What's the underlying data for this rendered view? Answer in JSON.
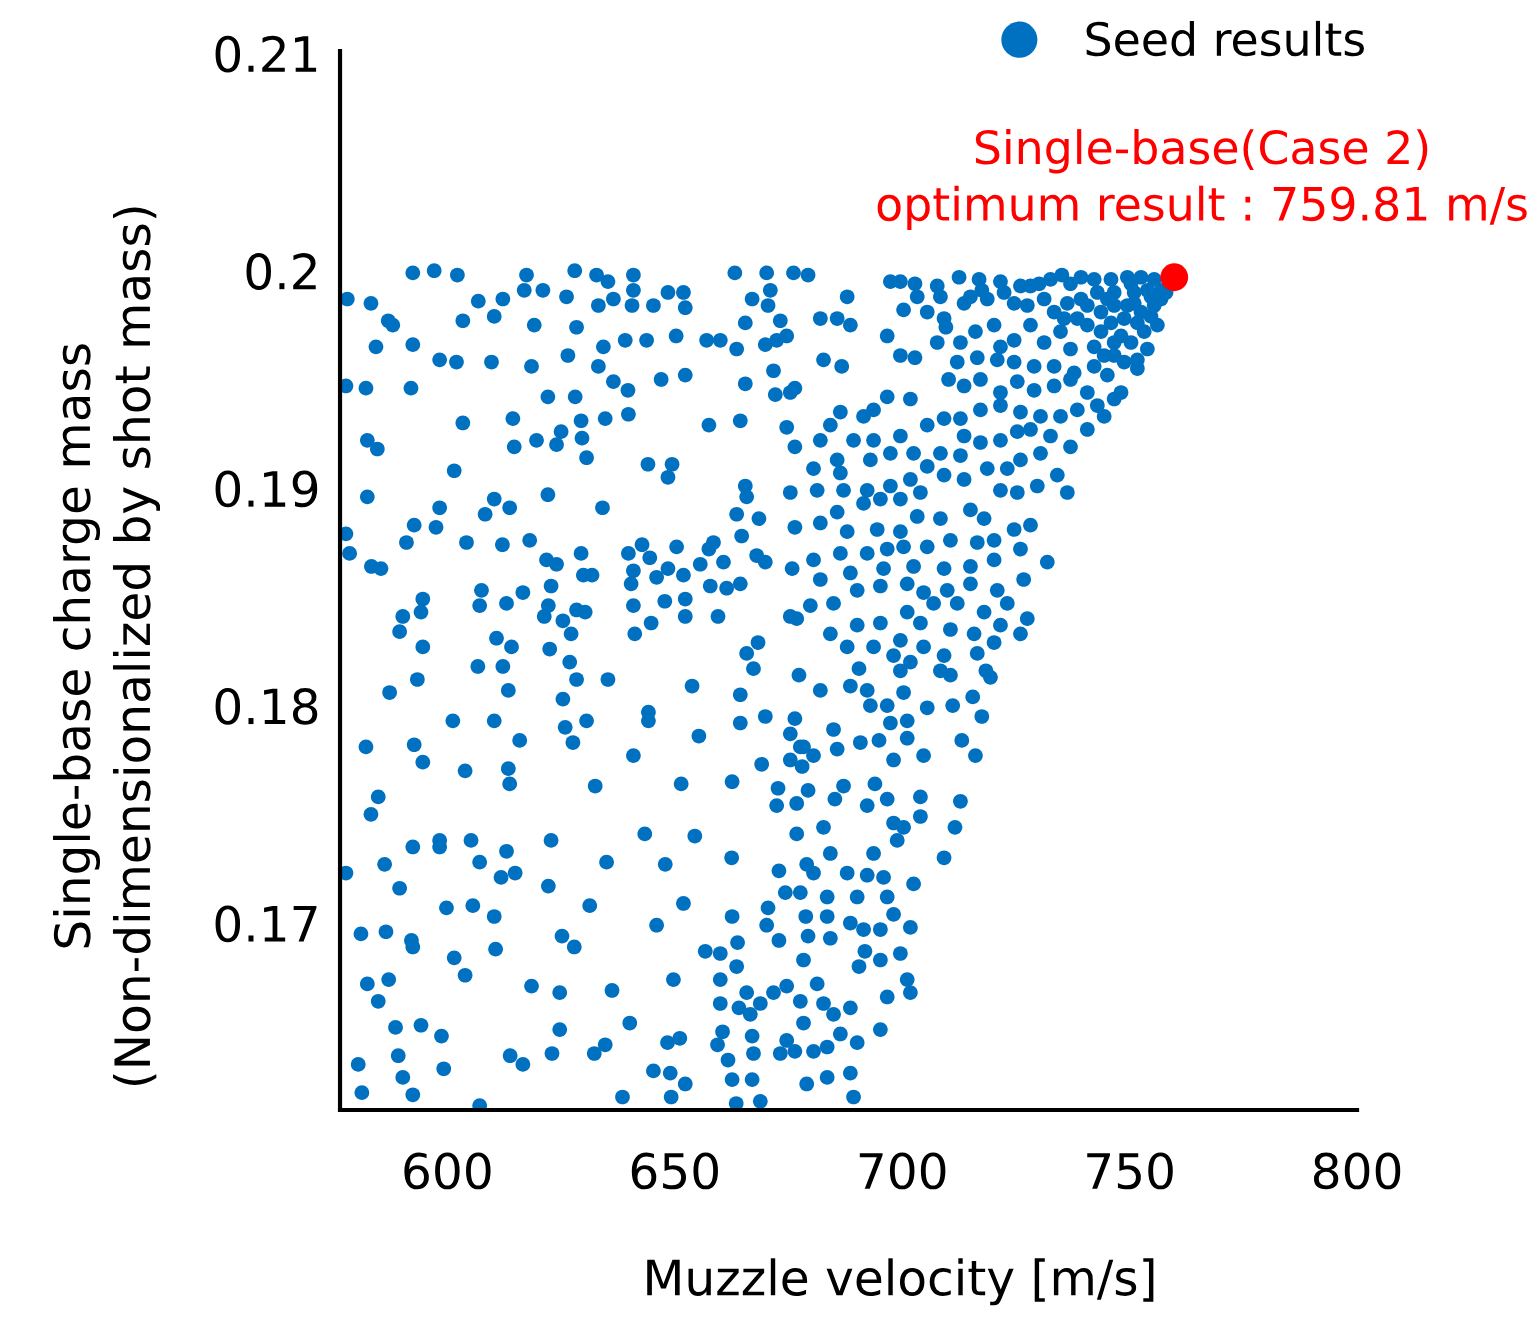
{
  "chart_data": {
    "type": "scatter",
    "xlabel": "Muzzle velocity [m/s]",
    "ylabel": "Single-base charge mass\n(Non-dimensionalized by shot mass)",
    "xlim": [
      576.4,
      800
    ],
    "ylim": [
      0.1614,
      0.2101
    ],
    "xticks": [
      600,
      650,
      700,
      750,
      800
    ],
    "yticks": [
      0.17,
      0.18,
      0.19,
      0.2,
      0.21
    ],
    "grid": false,
    "legend": "top right",
    "marker": "circle",
    "annotations": [
      {
        "text": "Single-base(Case 2)\noptimum result : 759.81 m/s",
        "x": 759.81,
        "y": 0.1997
      }
    ],
    "series": [
      {
        "name": "Seed results",
        "color": "#0070c0",
        "x": [
          592.4,
          597.1,
          602.2,
          617.4,
          616.9,
          621.0,
          628.0,
          626.2,
          632.8,
          635.3,
          636.5,
          633.2,
          640.9,
          640.9,
          640.6,
          645.3,
          648.5,
          651.9,
          652.3,
          663.2,
          670.2,
          671.0,
          667.0,
          670.5,
          676.1,
          578.0,
          583.2,
          587.0,
          588.0,
          584.3,
          592.4,
          598.3,
          602.0,
          606.8,
          612.2,
          603.4,
          610.3,
          609.7,
          619.1,
          618.5,
          626.5,
          628.4,
          634.3,
          639.1,
          643.8,
          633.2,
          636.5,
          639.7,
          652.3,
          647.0,
          650.3,
          657.0,
          660.0,
          663.6,
          665.5,
          669.9,
          672.4,
          674.6,
          673.2,
          671.7,
          577.7,
          582.1,
          592.0,
          603.4,
          614.4,
          622.1,
          628.1,
          629.4,
          634.7,
          639.8,
          625.0,
          629.6,
          619.6,
          614.7,
          624.0,
          630.6,
          582.4,
          584.6,
          601.5,
          644.1,
          649.4,
          648.5,
          657.5,
          664.4,
          665.5,
          672.1,
          675.4,
          676.4,
          674.6,
          676.4,
          665.5,
          665.8,
          675.4,
          582.4,
          577.7,
          578.5,
          583.3,
          585.4,
          591.0,
          592.7,
          597.5,
          598.3,
          604.2,
          608.3,
          610.3,
          613.7,
          612.1,
          618.1,
          622.1,
          621.8,
          624.0,
          629.4,
          629.9,
          631.8,
          622.8,
          634.1,
          639.8,
          642.8,
          644.5,
          650.4,
          640.9,
          646.0,
          648.5,
          651.9,
          655.6,
          657.5,
          658.5,
          660.7,
          640.4,
          657.8,
          661.4,
          664.4,
          663.6,
          664.7,
          668.5,
          668.0,
          669.9,
          676.4,
          675.8,
          607.5,
          607.1,
          613.0,
          616.6,
          622.2,
          621.3,
          625.4,
          628.4,
          630.3,
          594.6,
          594.2,
          590.2,
          589.5,
          594.6,
          610.8,
          614.1,
          622.5,
          627.2,
          640.9,
          641.2,
          644.8,
          647.8,
          652.3,
          652.3,
          659.5,
          675.4,
          676.8,
          665.8,
          668.3,
          679.3,
          697.4,
          699.6,
          702.8,
          707.7,
          712.5,
          716.9,
          717.5,
          721.6,
          722.4,
          726.0,
          728.2,
          730.1,
          732.6,
          735.1,
          737.0,
          739.3,
          742.2,
          745.9,
          749.5,
          752.5,
          755.4,
          687.9,
          682.0,
          685.7,
          688.6,
          682.7,
          686.7,
          696.7,
          700.3,
          703.3,
          705.5,
          708.4,
          709.2,
          713.6,
          715.0,
          718.7,
          724.6,
          727.5,
          731.2,
          733.4,
          736.3,
          739.3,
          742.9,
          746.6,
          751.0,
          754.7,
          756.9,
          699.6,
          702.8,
          707.7,
          709.6,
          712.8,
          716.1,
          720.2,
          721.6,
          724.6,
          728.2,
          731.2,
          734.8,
          737.0,
          740.7,
          743.7,
          746.6,
          748.8,
          752.5,
          755.4,
          753.2,
          750.3,
          746.6,
          744.4,
          748.8,
          751.7,
          753.9,
          742.2,
          737.8,
          733.4,
          729.0,
          724.6,
          720.9,
          716.5,
          712.1,
          710.2,
          713.6,
          717.2,
          721.6,
          725.3,
          729.0,
          733.4,
          737.0,
          740.7,
          745.1,
          748.1,
          746.6,
          742.9,
          738.5,
          734.8,
          730.4,
          726.0,
          721.6,
          717.2,
          712.8,
          709.2,
          705.5,
          701.8,
          696.7,
          693.7,
          691.5,
          686.4,
          684.2,
          682.0,
          689.3,
          693.7,
          699.6,
          702.5,
          697.4,
          693.0,
          685.7,
          680.5,
          686.4,
          681.3,
          687.1,
          692.3,
          697.4,
          701.8,
          705.5,
          708.4,
          713.6,
          712.8,
          717.2,
          721.6,
          725.3,
          728.2,
          732.6,
          737.0,
          740.7,
          744.4,
          730.4,
          726.0,
          723.1,
          718.7,
          713.6,
          709.2,
          704.0,
          699.6,
          695.2,
          691.5,
          685.7,
          682.0,
          687.9,
          694.5,
          699.6,
          703.3,
          708.4,
          715.0,
          718.0,
          721.6,
          725.3,
          729.7,
          734.1,
          736.3,
          728.2,
          724.6,
          720.2,
          716.5,
          710.6,
          705.5,
          700.3,
          696.7,
          692.3,
          686.4,
          680.5,
          682.0,
          688.6,
          695.9,
          702.5,
          709.2,
          715.0,
          720.2,
          726.0,
          731.9,
          726.7,
          720.9,
          715.0,
          709.9,
          704.7,
          701.1,
          695.2,
          690.1,
          684.9,
          679.8,
          684.2,
          690.1,
          695.2,
          701.1,
          706.9,
          712.1,
          718.0,
          723.1,
          727.5,
          721.6,
          715.8,
          710.6,
          704.0,
          699.6,
          693.7,
          687.9,
          698.1,
          704.7,
          709.2,
          716.5,
          720.2,
          726.0,
          751.0,
          754.7,
          756.9,
          749.5,
          745.9,
          748.1,
          751.7,
          756.1,
          753.9,
          750.3,
          743.7,
          745.1,
          740.7,
          738.5,
          735.6,
          742.2,
          751.7,
          746.6,
          758.0,
          606.7,
          612.2,
          626.9,
          628.4,
          635.3,
          667.3,
          677.3,
          587.3,
          593.4,
          613.4,
          625.4,
          601.2,
          610.3,
          615.9,
          625.9,
          627.6,
          630.6,
          644.2,
          644.2,
          640.9,
          655.3,
          653.8,
          664.4,
          664.4,
          669.9,
          675.4,
          676.4,
          677.6,
          675.4,
          669.1,
          582.1,
          592.7,
          594.6,
          603.9,
          613.4,
          613.7,
          632.5,
          651.4,
          662.6,
          672.7,
          676.8,
          672.4,
          584.8,
          583.2,
          598.3,
          598.3,
          592.4,
          605.2,
          607.1,
          613.0,
          614.9,
          611.8,
          622.8,
          622.2,
          635.0,
          643.4,
          647.9,
          654.4,
          662.5,
          676.8,
          672.9,
          674.3,
          677.6,
          577.7,
          586.2,
          589.5,
          599.8,
          605.6,
          610.3,
          631.3,
          646.0,
          651.9,
          662.6,
          670.5,
          672.9,
          670.2,
          581.0,
          586.5,
          592.1,
          592.4,
          601.5,
          603.9,
          610.6,
          625.2,
          627.9,
          618.5,
          624.7,
          636.2,
          640.1,
          649.7,
          656.7,
          660.0,
          663.8,
          663.6,
          660.0,
          665.8,
          664.1,
          666.6,
          668.8,
          671.7,
          674.6,
          677.6,
          660.0,
          582.4,
          584.8,
          587.1,
          588.6,
          594.2,
          598.7,
          589.2,
          599.2,
          590.2,
          592.4,
          580.4,
          581.2,
          607.1,
          613.8,
          616.6,
          623.0,
          624.7,
          632.3,
          634.7,
          638.5,
          645.3,
          648.4,
          651.1,
          649.0,
          649.2,
          652.3,
          659.4,
          660.5,
          661.7,
          662.6,
          663.5,
          667.0,
          667.3,
          667.0,
          668.8,
          673.2,
          674.6,
          676.4,
          690.5,
          699.6,
          701.8,
          708.4,
          710.6,
          718.4,
          719.4,
          682.0,
          688.6,
          692.3,
          696.7,
          700.3,
          693.0,
          705.5,
          711.1,
          715.5,
          717.5,
          697.4,
          701.1,
          684.9,
          678.3,
          680.5,
          685.7,
          690.8,
          694.9,
          701.1,
          704.7,
          713.1,
          716.1,
          698.1,
          678.0,
          679.3,
          687.1,
          685.2,
          692.3,
          694.0,
          696.7,
          704.0,
          712.8,
          698.1,
          700.3,
          704.0,
          711.6,
          682.7,
          679.0,
          680.5,
          684.2,
          687.9,
          692.3,
          695.9,
          683.5,
          690.1,
          696.7,
          693.7,
          698.9,
          702.5,
          709.2,
          678.8,
          683.5,
          688.6,
          679.3,
          684.2,
          691.5,
          695.2,
          698.1,
          701.8,
          691.8,
          695.2,
          699.6,
          678.3,
          681.3,
          684.9,
          688.6,
          690.5,
          695.2,
          696.7,
          701.8,
          701.1,
          682.7,
          678.3,
          680.5,
          683.5,
          686.4,
          690.1,
          679.0,
          683.5,
          688.6,
          689.3
        ],
        "values": [
          0.1999,
          0.2,
          0.1998,
          0.1998,
          0.1991,
          0.1991,
          0.2,
          0.1988,
          0.1998,
          0.1995,
          0.1987,
          0.1984,
          0.1998,
          0.1991,
          0.1984,
          0.1984,
          0.199,
          0.199,
          0.1983,
          0.1999,
          0.1999,
          0.1991,
          0.1987,
          0.1984,
          0.1999,
          0.1987,
          0.1985,
          0.1977,
          0.1975,
          0.1965,
          0.1966,
          0.1959,
          0.1958,
          0.1986,
          0.1987,
          0.1977,
          0.1979,
          0.1958,
          0.1975,
          0.1956,
          0.1961,
          0.1974,
          0.1965,
          0.1968,
          0.1968,
          0.1956,
          0.1949,
          0.1945,
          0.1952,
          0.195,
          0.197,
          0.1968,
          0.1968,
          0.1964,
          0.1976,
          0.1966,
          0.1968,
          0.197,
          0.1977,
          0.1954,
          0.1947,
          0.1946,
          0.1946,
          0.193,
          0.1932,
          0.1942,
          0.1942,
          0.1931,
          0.1932,
          0.1934,
          0.1926,
          0.1923,
          0.1922,
          0.1919,
          0.192,
          0.1914,
          0.1922,
          0.1918,
          0.1908,
          0.1911,
          0.1911,
          0.1905,
          0.1929,
          0.1931,
          0.1948,
          0.1943,
          0.1944,
          0.1946,
          0.1928,
          0.1919,
          0.1901,
          0.1896,
          0.1898,
          0.1896,
          0.1879,
          0.187,
          0.1864,
          0.1863,
          0.1875,
          0.1883,
          0.1882,
          0.1891,
          0.1875,
          0.1888,
          0.1895,
          0.1891,
          0.1874,
          0.1876,
          0.1897,
          0.1867,
          0.1865,
          0.187,
          0.186,
          0.186,
          0.1855,
          0.1891,
          0.187,
          0.1874,
          0.1868,
          0.1873,
          0.1862,
          0.1859,
          0.1863,
          0.186,
          0.1865,
          0.1872,
          0.1875,
          0.1866,
          0.1856,
          0.1855,
          0.1854,
          0.1856,
          0.1888,
          0.1878,
          0.1886,
          0.1869,
          0.1866,
          0.1882,
          0.1863,
          0.1853,
          0.1846,
          0.1847,
          0.1852,
          0.1846,
          0.1841,
          0.1839,
          0.1844,
          0.1843,
          0.1849,
          0.1843,
          0.1841,
          0.1834,
          0.1827,
          0.1831,
          0.1827,
          0.1826,
          0.1833,
          0.1846,
          0.1833,
          0.1838,
          0.1848,
          0.1849,
          0.1841,
          0.1841,
          0.1841,
          0.184,
          0.1824,
          0.1829,
          0.1998,
          0.1995,
          0.1995,
          0.1994,
          0.1993,
          0.1997,
          0.1996,
          0.1991,
          0.1995,
          0.199,
          0.1993,
          0.1993,
          0.1994,
          0.1996,
          0.1998,
          0.1994,
          0.1997,
          0.1996,
          0.1996,
          0.1997,
          0.1997,
          0.1996,
          0.1988,
          0.1978,
          0.1978,
          0.1975,
          0.1959,
          0.1956,
          0.197,
          0.1982,
          0.1988,
          0.1981,
          0.1988,
          0.1978,
          0.1985,
          0.1988,
          0.1987,
          0.1985,
          0.1984,
          0.1987,
          0.1981,
          0.1985,
          0.1987,
          0.199,
          0.199,
          0.199,
          0.1988,
          0.1991,
          0.1961,
          0.196,
          0.1967,
          0.1974,
          0.1967,
          0.1972,
          0.1975,
          0.1965,
          0.1968,
          0.1975,
          0.1967,
          0.1972,
          0.1964,
          0.1975,
          0.1981,
          0.1984,
          0.1978,
          0.1981,
          0.1984,
          0.1972,
          0.1967,
          0.1967,
          0.1961,
          0.1958,
          0.1959,
          0.1964,
          0.1956,
          0.1953,
          0.1956,
          0.1956,
          0.1958,
          0.1959,
          0.196,
          0.1958,
          0.195,
          0.1947,
          0.195,
          0.1944,
          0.1949,
          0.1945,
          0.1947,
          0.195,
          0.1944,
          0.1952,
          0.1944,
          0.1941,
          0.1938,
          0.1936,
          0.1933,
          0.1933,
          0.1935,
          0.1938,
          0.1936,
          0.1932,
          0.1932,
          0.1929,
          0.1941,
          0.1942,
          0.1936,
          0.1933,
          0.1935,
          0.1929,
          0.1922,
          0.1922,
          0.1922,
          0.1924,
          0.1916,
          0.1916,
          0.1913,
          0.1913,
          0.1909,
          0.1907,
          0.1899,
          0.1899,
          0.1899,
          0.1901,
          0.1904,
          0.191,
          0.1916,
          0.1924,
          0.1915,
          0.1921,
          0.1922,
          0.1926,
          0.1927,
          0.1924,
          0.1919,
          0.1927,
          0.1933,
          0.1916,
          0.1913,
          0.1909,
          0.1909,
          0.1904,
          0.1906,
          0.1898,
          0.1895,
          0.1895,
          0.1893,
          0.1889,
          0.1884,
          0.188,
          0.1881,
          0.188,
          0.1887,
          0.1886,
          0.189,
          0.1886,
          0.1899,
          0.1898,
          0.1901,
          0.1906,
          0.1898,
          0.1883,
          0.1881,
          0.1876,
          0.1875,
          0.1876,
          0.1873,
          0.1873,
          0.1872,
          0.187,
          0.187,
          0.1867,
          0.1858,
          0.1861,
          0.1863,
          0.1864,
          0.1863,
          0.1864,
          0.1867,
          0.1872,
          0.1866,
          0.1858,
          0.1853,
          0.1856,
          0.1853,
          0.1852,
          0.1856,
          0.1855,
          0.1853,
          0.1847,
          0.1846,
          0.1833,
          0.1837,
          0.1838,
          0.1843,
          0.1847,
          0.1847,
          0.1843,
          0.1847,
          0.184,
          0.1837,
          0.1833,
          0.1835,
          0.1838,
          0.183,
          0.1827,
          0.1827,
          0.1823,
          0.1827,
          0.1823,
          0.1824,
          0.1829,
          0.1833,
          0.1985,
          0.1979,
          0.1987,
          0.1984,
          0.1976,
          0.197,
          0.1976,
          0.1975,
          0.1991,
          0.1994,
          0.1972,
          0.1987,
          0.1984,
          0.1978,
          0.1978,
          0.1965,
          0.1955,
          0.1961,
          0.199,
          0.1818,
          0.1818,
          0.182,
          0.1812,
          0.1812,
          0.1817,
          0.1814,
          0.1806,
          0.1812,
          0.1807,
          0.1803,
          0.1793,
          0.1793,
          0.1784,
          0.179,
          0.1783,
          0.1793,
          0.1797,
          0.1793,
          0.1777,
          0.1786,
          0.1809,
          0.1805,
          0.1792,
          0.1795,
          0.1787,
          0.1794,
          0.1781,
          0.1775,
          0.1773,
          0.1781,
          0.1782,
          0.1774,
          0.177,
          0.1771,
          0.1764,
          0.1763,
          0.1764,
          0.1765,
          0.1762,
          0.1755,
          0.1754,
          0.1758,
          0.175,
          0.1738,
          0.1735,
          0.1735,
          0.1738,
          0.1728,
          0.1733,
          0.1723,
          0.1721,
          0.1738,
          0.1717,
          0.1728,
          0.1741,
          0.1727,
          0.174,
          0.173,
          0.1741,
          0.1724,
          0.1714,
          0.1714,
          0.1723,
          0.1727,
          0.1716,
          0.1707,
          0.1708,
          0.1703,
          0.1708,
          0.1699,
          0.1709,
          0.1703,
          0.1707,
          0.1692,
          0.1699,
          0.1695,
          0.1696,
          0.1692,
          0.1689,
          0.1684,
          0.1676,
          0.1688,
          0.1694,
          0.1689,
          0.1671,
          0.1668,
          0.1669,
          0.1654,
          0.1674,
          0.1687,
          0.1686,
          0.1691,
          0.168,
          0.1674,
          0.1668,
          0.1661,
          0.1658,
          0.1663,
          0.1668,
          0.1671,
          0.1664,
          0.1663,
          0.1672,
          0.1664,
          0.1674,
          0.1652,
          0.1653,
          0.1648,
          0.1639,
          0.1633,
          0.1629,
          0.1621,
          0.1635,
          0.1622,
          0.1616,
          0.1639,
          0.1635,
          0.164,
          0.1651,
          0.164,
          0.1644,
          0.162,
          0.1632,
          0.1645,
          0.1647,
          0.1631,
          0.162,
          0.1626,
          0.1644,
          0.165,
          0.1637,
          0.1628,
          0.1617,
          0.1648,
          0.164,
          0.1628,
          0.1618,
          0.164,
          0.1646,
          0.1641,
          0.1817,
          0.1816,
          0.182,
          0.1816,
          0.1814,
          0.1816,
          0.1813,
          0.1807,
          0.1809,
          0.1807,
          0.18,
          0.1806,
          0.18,
          0.1799,
          0.18,
          0.1804,
          0.1795,
          0.1792,
          0.1793,
          0.1789,
          0.1781,
          0.1777,
          0.178,
          0.1783,
          0.1784,
          0.1785,
          0.1777,
          0.1784,
          0.1777,
          0.1775,
          0.1772,
          0.1761,
          0.1763,
          0.1757,
          0.1754,
          0.1764,
          0.1757,
          0.1758,
          0.1756,
          0.1746,
          0.1744,
          0.1749,
          0.1744,
          0.1744,
          0.1727,
          0.1723,
          0.1732,
          0.1723,
          0.1722,
          0.1721,
          0.1712,
          0.1712,
          0.1712,
          0.1732,
          0.1738,
          0.1718,
          0.173,
          0.1703,
          0.1703,
          0.17,
          0.1694,
          0.1693,
          0.1697,
          0.1697,
          0.1704,
          0.1698,
          0.1687,
          0.1683,
          0.1686,
          0.1683,
          0.1672,
          0.1658,
          0.1661,
          0.168,
          0.1651,
          0.1666,
          0.1668,
          0.1674,
          0.1663,
          0.1654,
          0.1641,
          0.1643,
          0.1649,
          0.1645,
          0.1626,
          0.1629,
          0.1631,
          0.162
        ]
      },
      {
        "color": "#ff0000",
        "x": [
          759.81
        ],
        "values": [
          0.1997
        ]
      }
    ]
  }
}
